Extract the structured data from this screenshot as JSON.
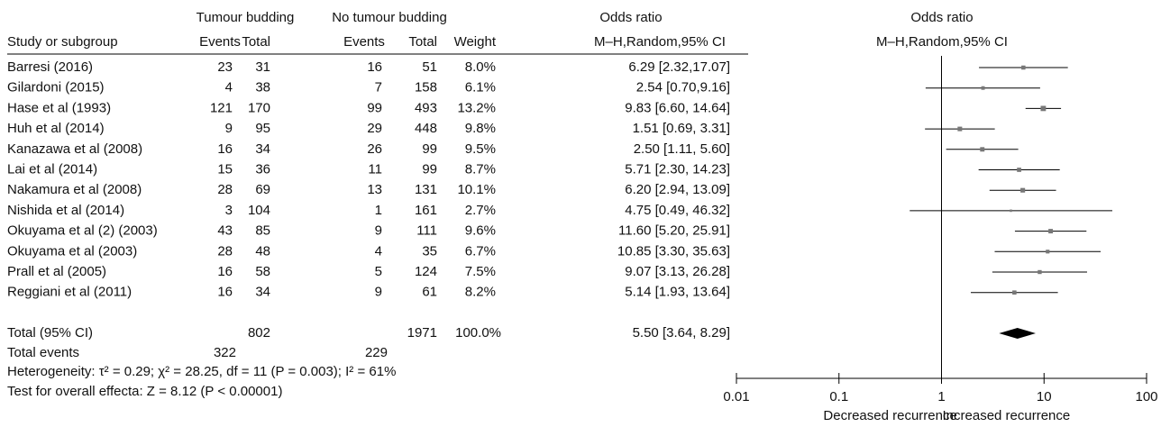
{
  "chart_data": {
    "type": "forest",
    "group_headers": [
      "Tumour budding",
      "No tumour budding",
      "Odds ratio",
      "Odds ratio"
    ],
    "column_headers": [
      "Study or subgroup",
      "Events",
      "Total",
      "Events",
      "Total",
      "Weight",
      "M–H,Random,95% CI",
      "M–H,Random,95% CI"
    ],
    "studies": [
      "Barresi (2016)",
      "Gilardoni (2015)",
      "Hase et al (1993)",
      "Huh et al (2014)",
      "Kanazawa et al (2008)",
      "Lai et al (2014)",
      "Nakamura et al (2008)",
      "Nishida et al (2014)",
      "Okuyama et al (2) (2003)",
      "Okuyama et al (2003)",
      "Prall et al (2005)",
      "Reggiani et al (2011)"
    ],
    "events_budding": [
      23,
      4,
      121,
      9,
      16,
      15,
      28,
      3,
      43,
      28,
      16,
      16
    ],
    "total_budding": [
      31,
      38,
      170,
      95,
      34,
      36,
      69,
      104,
      85,
      48,
      58,
      34
    ],
    "events_no": [
      16,
      7,
      99,
      29,
      26,
      11,
      13,
      1,
      9,
      4,
      5,
      9
    ],
    "total_no": [
      51,
      158,
      493,
      448,
      99,
      99,
      131,
      161,
      111,
      35,
      124,
      61
    ],
    "weights": [
      8.0,
      6.1,
      13.2,
      9.8,
      9.5,
      8.7,
      10.1,
      2.7,
      9.6,
      6.7,
      7.5,
      8.2
    ],
    "weight_labels": [
      "8.0%",
      "6.1%",
      "13.2%",
      "9.8%",
      "9.5%",
      "8.7%",
      "10.1%",
      "2.7%",
      "9.6%",
      "6.7%",
      "7.5%",
      "8.2%"
    ],
    "or": [
      6.29,
      2.54,
      9.83,
      1.51,
      2.5,
      5.71,
      6.2,
      4.75,
      11.6,
      10.85,
      9.07,
      5.14
    ],
    "ci_lower": [
      2.32,
      0.7,
      6.6,
      0.69,
      1.11,
      2.3,
      2.94,
      0.49,
      5.2,
      3.3,
      3.13,
      1.93
    ],
    "ci_upper": [
      17.07,
      9.16,
      14.64,
      3.31,
      5.6,
      14.23,
      13.09,
      46.32,
      25.91,
      35.63,
      26.28,
      13.64
    ],
    "ci_labels": [
      "6.29 [2.32,17.07]",
      "2.54 [0.70,9.16]",
      "9.83 [6.60, 14.64]",
      "1.51 [0.69, 3.31]",
      "2.50 [1.11, 5.60]",
      "5.71 [2.30, 14.23]",
      "6.20 [2.94, 13.09]",
      "4.75 [0.49, 46.32]",
      "11.60 [5.20, 25.91]",
      "10.85 [3.30, 35.63]",
      "9.07 [3.13, 26.28]",
      "5.14 [1.93, 13.64]"
    ],
    "total": {
      "label": "Total (95% CI)",
      "total_budding": 802,
      "total_no": 1971,
      "weight": 100.0,
      "weight_label": "100.0%",
      "or": 5.5,
      "ci_lower": 3.64,
      "ci_upper": 8.29,
      "ci_label": "5.50 [3.64, 8.29]"
    },
    "total_events": {
      "label": "Total events",
      "budding": 322,
      "no": 229
    },
    "heterogeneity": "Heterogeneity: τ² = 0.29; χ² = 28.25, df = 11 (P = 0.003); I² = 61%",
    "overall_effect": "Test for overall effecta: Z = 8.12 (P < 0.00001)",
    "log_scale": true,
    "xlim": [
      0.01,
      100
    ],
    "xticks": [
      0.01,
      0.1,
      1,
      10,
      100
    ],
    "xlabel_left": "Decreased recurrence",
    "xlabel_right": "Increased recurrence",
    "color": "#000000",
    "marker_color": "#777777"
  }
}
